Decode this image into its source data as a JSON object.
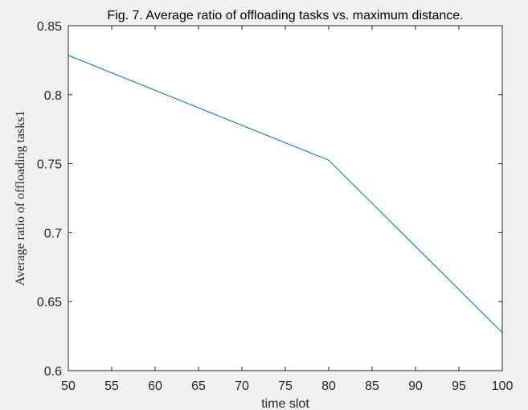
{
  "chart_data": {
    "type": "line",
    "title": "Fig. 7. Average ratio of offloading tasks vs. maximum distance.",
    "xlabel": "time slot",
    "ylabel": "Average ratio of offloading tasks1",
    "xlim": [
      50,
      100
    ],
    "ylim": [
      0.6,
      0.85
    ],
    "xticks": [
      50,
      55,
      60,
      65,
      70,
      75,
      80,
      85,
      90,
      95,
      100
    ],
    "yticks": [
      0.6,
      0.65,
      0.7,
      0.75,
      0.8,
      0.85
    ],
    "xtick_labels": [
      "50",
      "55",
      "60",
      "65",
      "70",
      "75",
      "80",
      "85",
      "90",
      "95",
      "100"
    ],
    "ytick_labels": [
      "0.6",
      "0.65",
      "0.7",
      "0.75",
      "0.8",
      "0.85"
    ],
    "grid": false,
    "series": [
      {
        "x": [
          50,
          80,
          100
        ],
        "y": [
          0.8285,
          0.7525,
          0.6275
        ],
        "color": "#0072bd"
      }
    ]
  },
  "colors": {
    "figure_background": "#f0f0f0",
    "axes_background": "#ffffff",
    "axes_edge": "#262626",
    "line": "#0072bd"
  }
}
